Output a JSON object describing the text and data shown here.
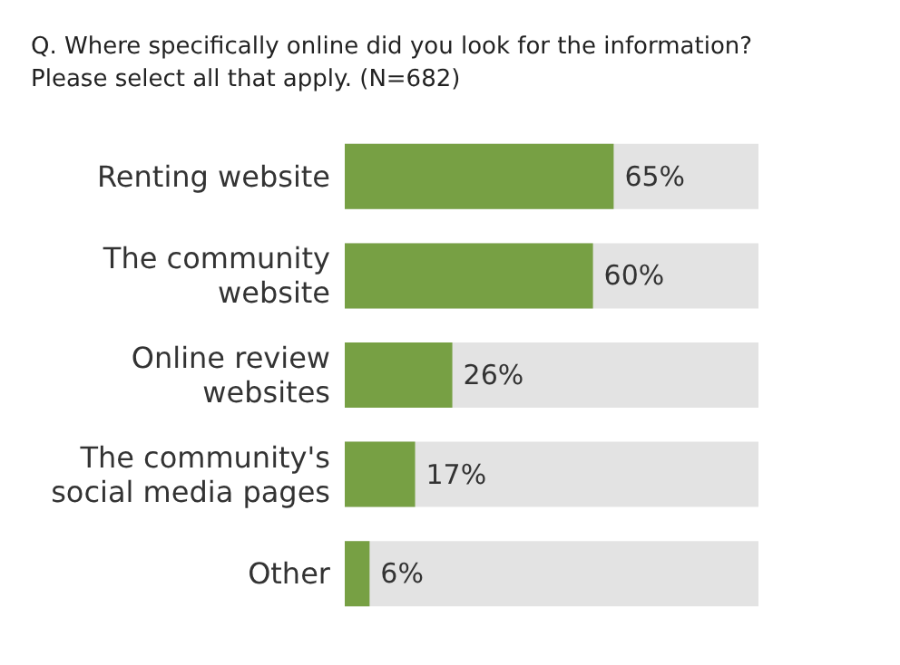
{
  "chart_data": {
    "type": "bar",
    "orientation": "horizontal",
    "title": "Q. Where specifically online did you look for the information?\nPlease select all that apply. (N=682)",
    "categories": [
      "Renting website",
      "The community\nwebsite",
      "Online review\nwebsites",
      "The community's\nsocial media pages",
      "Other"
    ],
    "values": [
      65,
      60,
      26,
      17,
      6
    ],
    "value_labels": [
      "65%",
      "60%",
      "26%",
      "17%",
      "6%"
    ],
    "color": "#77a044",
    "xlim": [
      0,
      100
    ],
    "tick_labels": "y"
  }
}
